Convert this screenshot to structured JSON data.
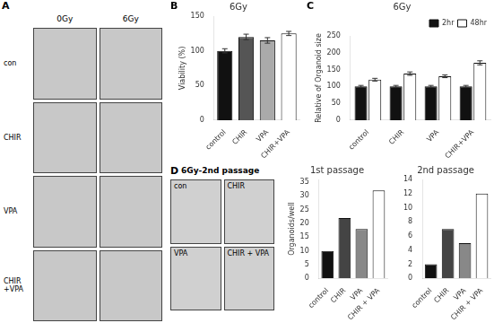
{
  "chart_data": [
    {
      "type": "images",
      "annotations": [
        "A"
      ],
      "categories": [
        "0Gy",
        "6Gy"
      ],
      "rows": [
        "con",
        "CHIR",
        "VPA",
        "CHIR\n+VPA"
      ],
      "color": "#c8c8c8"
    },
    {
      "type": "bar",
      "annotations": [
        "B"
      ],
      "title": "6Gy",
      "categories": [
        "control",
        "CHIR",
        "VPA",
        "CHIR+VPA"
      ],
      "values": [
        100,
        120,
        115,
        125
      ],
      "errors": [
        3,
        4,
        4,
        3
      ],
      "colors": [
        "#111111",
        "#555555",
        "#aaaaaa",
        "#ffffff"
      ],
      "ylabel": "Viability (%)",
      "ylim": [
        0,
        150
      ],
      "yticks": [
        0,
        50,
        100,
        150
      ],
      "grid": false
    },
    {
      "type": "bar",
      "annotations": [
        "C"
      ],
      "title": "6Gy",
      "categories": [
        "control",
        "CHIR",
        "VPA",
        "CHIR+VPA"
      ],
      "series": [
        {
          "name": "2hr",
          "color": "#111111",
          "values": [
            100,
            100,
            100,
            100
          ],
          "errors": [
            3,
            3,
            3,
            3
          ]
        },
        {
          "name": "48hr",
          "color": "#ffffff",
          "values": [
            120,
            138,
            130,
            170
          ],
          "errors": [
            4,
            5,
            4,
            6
          ]
        }
      ],
      "ylabel": "Relative of Organoid size",
      "ylim": [
        0,
        250
      ],
      "yticks": [
        0,
        50,
        100,
        150,
        200,
        250
      ],
      "legend": "upper right",
      "grid": false
    },
    {
      "type": "images",
      "annotations": [
        "D"
      ],
      "subtitle": "6Gy-2nd passage",
      "categories": [
        "con",
        "CHIR",
        "VPA",
        "CHIR + VPA"
      ],
      "color": "#d0d0d0"
    },
    {
      "type": "bar",
      "title": "1st passage",
      "categories": [
        "control",
        "CHIR",
        "VPA",
        "CHIR + VPA"
      ],
      "values": [
        10,
        22,
        18,
        32
      ],
      "colors": [
        "#111111",
        "#444444",
        "#888888",
        "#ffffff"
      ],
      "ylabel": "Organoids/well",
      "ylim": [
        0,
        36
      ],
      "yticks": [
        0,
        5,
        10,
        15,
        20,
        25,
        30,
        35
      ],
      "grid": false
    },
    {
      "type": "bar",
      "title": "2nd passage",
      "categories": [
        "control",
        "CHIR",
        "VPA",
        "CHIR + VPA"
      ],
      "values": [
        2,
        7,
        5,
        12
      ],
      "colors": [
        "#111111",
        "#444444",
        "#888888",
        "#ffffff"
      ],
      "ylim": [
        0,
        14
      ],
      "yticks": [
        0,
        2,
        4,
        6,
        8,
        10,
        12,
        14
      ],
      "grid": false
    }
  ]
}
